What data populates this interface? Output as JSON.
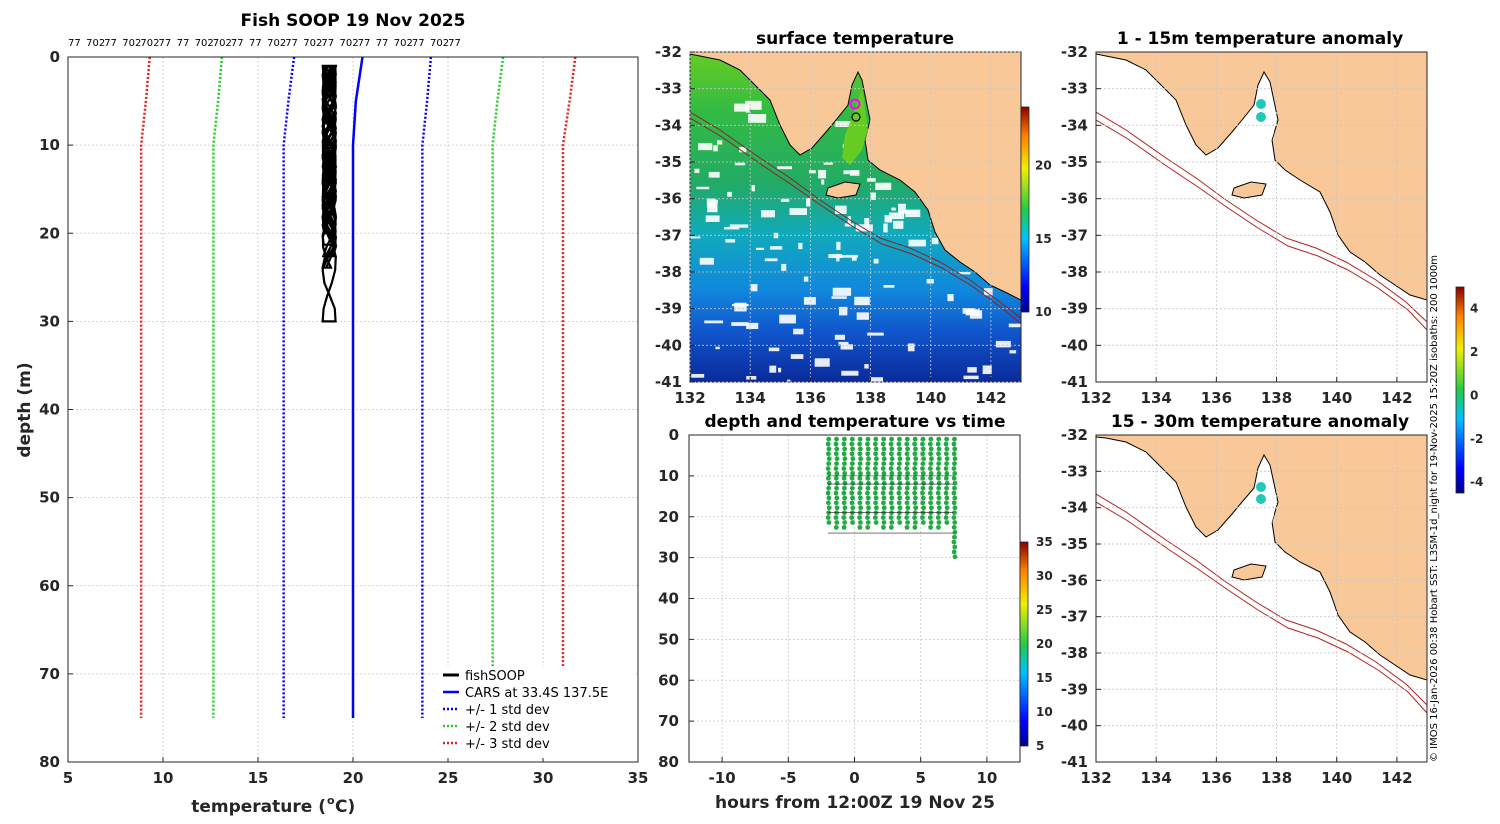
{
  "colors": {
    "fishsoop": "#000000",
    "cars": "#0000ff",
    "std1": "#0000ff",
    "std2": "#22cc22",
    "std3": "#dd2222",
    "land": "#f9c898",
    "coast": "#000000",
    "isobath": "#b22222",
    "dots": "#22aa44",
    "anom_marker": "#20c8b8"
  },
  "chart_data": [
    {
      "type": "line",
      "name": "profile",
      "title": "Fish SOOP 19 Nov 2025",
      "xlabel": "temperature (",
      "xlabel_sup": "o",
      "xlabel_end": "C)",
      "ylabel": "depth (m)",
      "xlim": [
        5,
        35
      ],
      "ylim": [
        0,
        80
      ],
      "xticks": [
        "5",
        "10",
        "15",
        "20",
        "25",
        "30",
        "35"
      ],
      "yticks": [
        "0",
        "10",
        "20",
        "30",
        "40",
        "50",
        "60",
        "70",
        "80"
      ],
      "top_labels": [
        "77",
        "702",
        "77",
        "702",
        "702",
        "77",
        "77",
        "702",
        "702",
        "77",
        "77",
        "702",
        "77",
        "702",
        "77",
        "702",
        "77",
        "77",
        "702",
        "77",
        "702",
        "77"
      ],
      "legend": [
        "fishSOOP",
        "CARS at 33.4S 137.5E",
        "+/- 1 std dev",
        "+/- 2 std dev",
        "+/- 3 std dev"
      ],
      "series": [
        {
          "name": "CARS",
          "depth": [
            0,
            5,
            10,
            75
          ],
          "temp": [
            20.5,
            20.15,
            20.0,
            20.0
          ]
        },
        {
          "name": "+1 std",
          "depth": [
            0,
            5,
            10,
            75
          ],
          "temp": [
            24.1,
            23.9,
            23.65,
            23.65
          ]
        },
        {
          "name": "-1 std",
          "depth": [
            0,
            5,
            10,
            75
          ],
          "temp": [
            16.9,
            16.6,
            16.35,
            16.35
          ]
        },
        {
          "name": "+2 std",
          "depth": [
            0,
            5,
            10,
            75
          ],
          "temp": [
            27.9,
            27.6,
            27.35,
            27.35
          ]
        },
        {
          "name": "-2 std",
          "depth": [
            0,
            5,
            10,
            75
          ],
          "temp": [
            13.1,
            12.9,
            12.65,
            12.65
          ]
        },
        {
          "name": "+3 std",
          "depth": [
            0,
            5,
            10,
            75
          ],
          "temp": [
            31.7,
            31.4,
            31.05,
            31.05
          ]
        },
        {
          "name": "-3 std",
          "depth": [
            0,
            5,
            10,
            75
          ],
          "temp": [
            9.3,
            9.1,
            8.85,
            8.85
          ]
        }
      ],
      "fishsoop_depth_max": 30,
      "fishsoop_temp_range": [
        18.4,
        19.1
      ]
    },
    {
      "type": "heatmap",
      "name": "surface-temperature",
      "title": "surface temperature",
      "xlim": [
        132,
        143
      ],
      "ylim": [
        -41,
        -32
      ],
      "xticks": [
        "132",
        "134",
        "136",
        "138",
        "140",
        "142"
      ],
      "yticks": [
        "-32",
        "-33",
        "-34",
        "-35",
        "-36",
        "-37",
        "-38",
        "-39",
        "-40",
        "-41"
      ],
      "colorbar_range": [
        10,
        24
      ],
      "colorbar_ticks": [
        "10",
        "15",
        "20"
      ]
    },
    {
      "type": "scatter",
      "name": "depth-vs-time",
      "title": "depth and temperature vs time",
      "xlabel": "hours from 12:00Z 19 Nov 25",
      "xlim": [
        -12.5,
        12.5
      ],
      "ylim": [
        0,
        80
      ],
      "xticks": [
        "-10",
        "-5",
        "0",
        "5",
        "10"
      ],
      "yticks": [
        "0",
        "10",
        "20",
        "30",
        "40",
        "50",
        "60",
        "70",
        "80"
      ],
      "colorbar_range": [
        5,
        35
      ],
      "colorbar_ticks": [
        "5",
        "10",
        "15",
        "20",
        "25",
        "30",
        "35"
      ],
      "time_range": [
        -2,
        7.5
      ],
      "depth_range": [
        1,
        30
      ]
    },
    {
      "type": "heatmap",
      "name": "anomaly-1-15m",
      "title": "1 - 15m temperature anomaly",
      "xlim": [
        132,
        143
      ],
      "ylim": [
        -41,
        -32
      ],
      "xticks": [
        "132",
        "134",
        "136",
        "138",
        "140",
        "142"
      ],
      "yticks": [
        "-32",
        "-33",
        "-34",
        "-35",
        "-36",
        "-37",
        "-38",
        "-39",
        "-40",
        "-41"
      ],
      "markers": [
        {
          "lon": 137.55,
          "lat": -33.45
        },
        {
          "lon": 137.55,
          "lat": -33.8
        }
      ]
    },
    {
      "type": "heatmap",
      "name": "anomaly-15-30m",
      "title": "15 - 30m temperature anomaly",
      "xlim": [
        132,
        143
      ],
      "ylim": [
        -41,
        -32
      ],
      "xticks": [
        "132",
        "134",
        "136",
        "138",
        "140",
        "142"
      ],
      "yticks": [
        "-32",
        "-33",
        "-34",
        "-35",
        "-36",
        "-37",
        "-38",
        "-39",
        "-40",
        "-41"
      ],
      "markers": [
        {
          "lon": 137.55,
          "lat": -33.45
        },
        {
          "lon": 137.55,
          "lat": -33.75
        }
      ],
      "colorbar_range": [
        -4.5,
        5
      ],
      "colorbar_ticks": [
        "-4",
        "-2",
        "0",
        "2",
        "4"
      ]
    }
  ],
  "side_note": "© IMOS 16-Jan-2026 00:38 Hobart SST: L3SM-1d_night for 19-Nov-2025 15:20Z isobaths: 200  1000m"
}
